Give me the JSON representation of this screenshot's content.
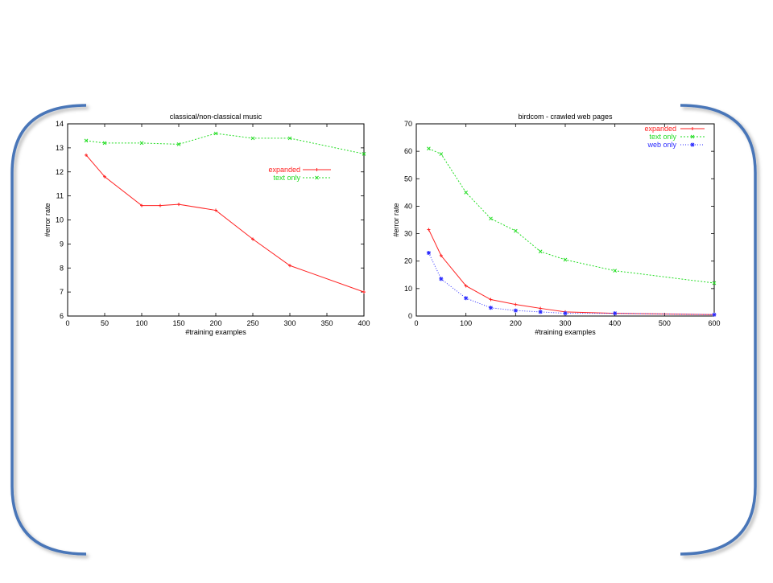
{
  "colors": {
    "bracket": "#4a76b8",
    "expanded": "#ff2020",
    "text_only": "#22dd22",
    "web_only": "#2a2aff",
    "axis": "#000000"
  },
  "chart_data": [
    {
      "type": "line",
      "title": "classical/non-classical music",
      "xlabel": "#training examples",
      "ylabel": "#error rate",
      "xlim": [
        0,
        400
      ],
      "ylim": [
        6,
        14
      ],
      "x_ticks": [
        "0",
        "50",
        "100",
        "150",
        "200",
        "250",
        "300",
        "350",
        "400"
      ],
      "y_ticks": [
        "6",
        "7",
        "8",
        "9",
        "10",
        "11",
        "12",
        "13",
        "14"
      ],
      "legend_position": "right",
      "series": [
        {
          "name": "expanded",
          "color": "#ff2020",
          "dash": "",
          "x": [
            25,
            50,
            100,
            125,
            150,
            200,
            250,
            300,
            400
          ],
          "y": [
            12.7,
            11.8,
            10.6,
            10.6,
            10.65,
            10.4,
            9.2,
            8.1,
            7.0
          ]
        },
        {
          "name": "text only",
          "color": "#22dd22",
          "dash": "2,2",
          "x": [
            25,
            50,
            100,
            150,
            200,
            250,
            300,
            400
          ],
          "y": [
            13.3,
            13.2,
            13.2,
            13.15,
            13.6,
            13.4,
            13.4,
            12.75
          ]
        }
      ]
    },
    {
      "type": "line",
      "title": "birdcom - crawled web pages",
      "xlabel": "#training examples",
      "ylabel": "#error rate",
      "xlim": [
        0,
        600
      ],
      "ylim": [
        0,
        70
      ],
      "x_ticks": [
        "0",
        "100",
        "200",
        "300",
        "400",
        "500",
        "600"
      ],
      "y_ticks": [
        "0",
        "10",
        "20",
        "30",
        "40",
        "50",
        "60",
        "70"
      ],
      "legend_position": "top-right",
      "series": [
        {
          "name": "expanded",
          "color": "#ff2020",
          "dash": "",
          "x": [
            25,
            50,
            100,
            150,
            200,
            250,
            300,
            400,
            600
          ],
          "y": [
            31.5,
            22,
            11,
            6,
            4.2,
            2.8,
            1.5,
            1.0,
            0.5
          ]
        },
        {
          "name": "text only",
          "color": "#22dd22",
          "dash": "2,2",
          "x": [
            25,
            50,
            100,
            150,
            200,
            250,
            300,
            400,
            600
          ],
          "y": [
            61,
            59,
            45,
            35.5,
            31,
            23.5,
            20.5,
            16.5,
            12
          ]
        },
        {
          "name": "web only",
          "color": "#2a2aff",
          "dash": "1,2",
          "x": [
            25,
            50,
            100,
            150,
            200,
            250,
            300,
            400,
            600
          ],
          "y": [
            23,
            13.5,
            6.5,
            3,
            2,
            1.5,
            1,
            1,
            0.5
          ]
        }
      ]
    }
  ]
}
